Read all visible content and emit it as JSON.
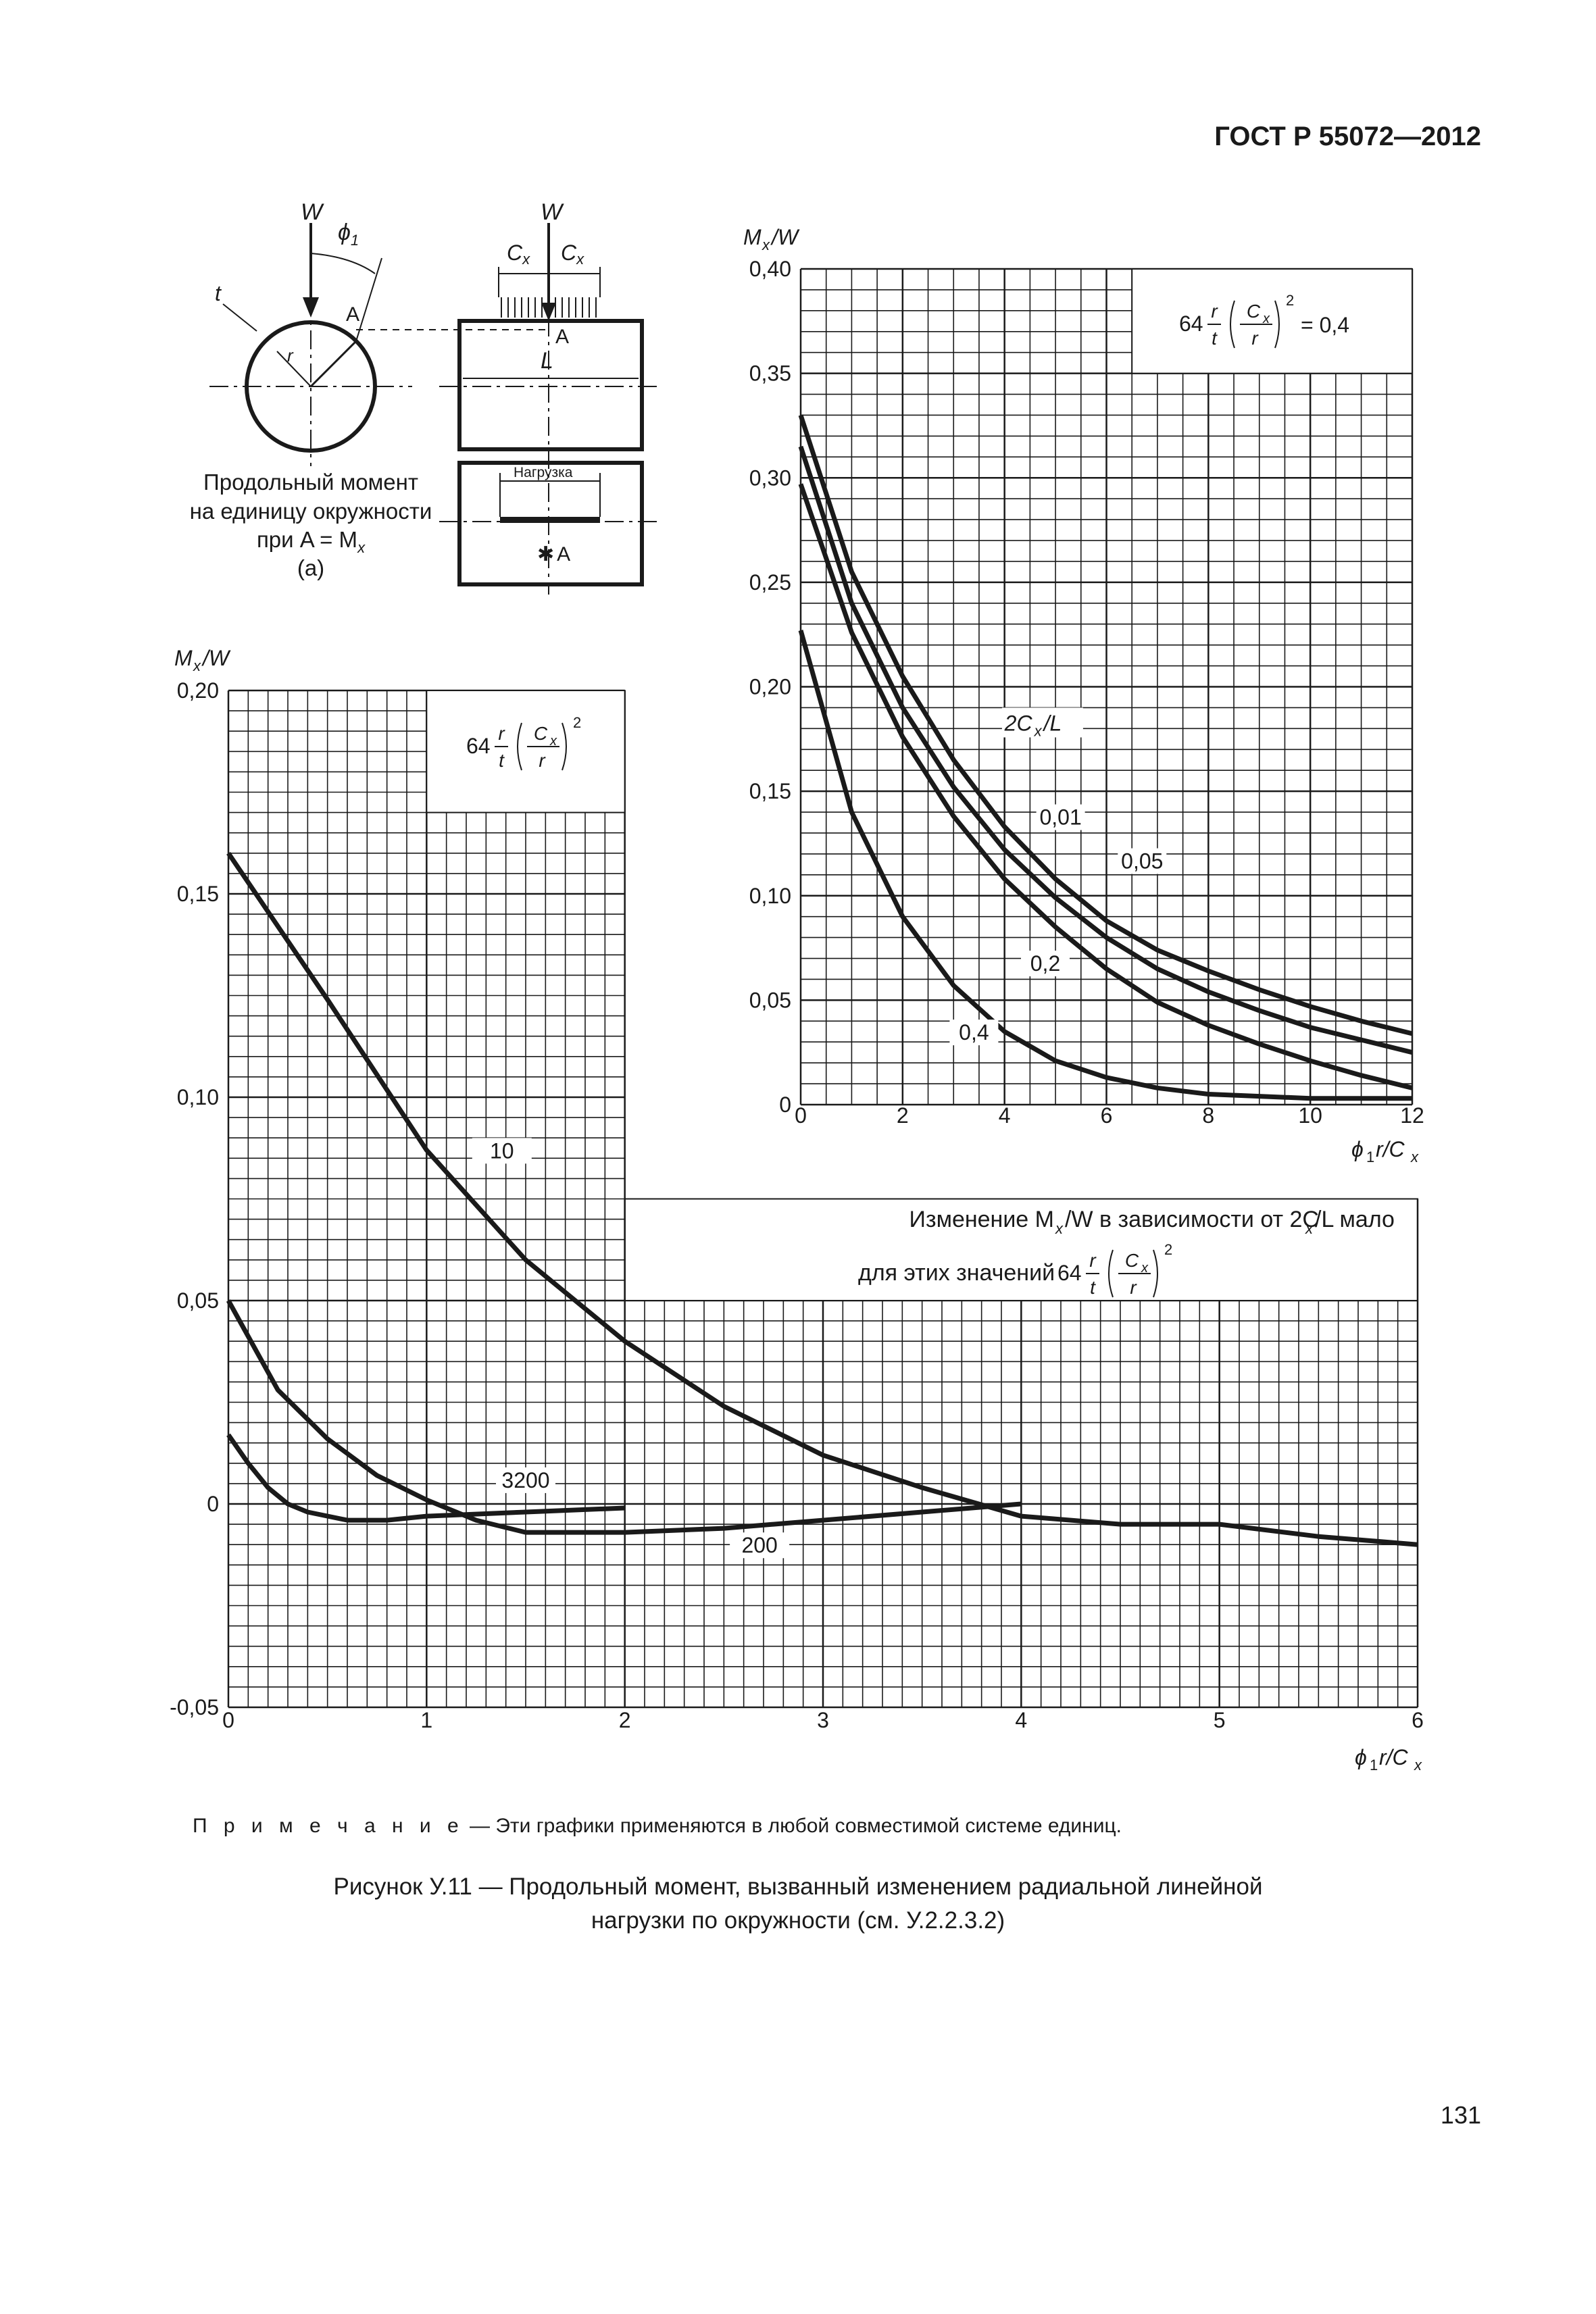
{
  "header": {
    "standard": "ГОСТ Р 55072—2012"
  },
  "page_number": "131",
  "note": {
    "prefix": "П р и м е ч а н и е",
    "text": " — Эти графики применяются в любой совместимой системе единиц."
  },
  "caption": {
    "line1": "Рисунок У.11 — Продольный момент, вызванный изменением радиальной линейной",
    "line2": "нагрузки по окружности (см. У.2.2.3.2)"
  },
  "schematic": {
    "w_left": "W",
    "w_right": "W",
    "phi": "ϕ",
    "phi_sub": "1",
    "t": "t",
    "r": "r",
    "A": "A",
    "cx": "C",
    "cx_sub": "x",
    "L": "L",
    "load_label": "Нагрузка",
    "star_A": "A",
    "desc_line1": "Продольный момент",
    "desc_line2": "на единицу окружности",
    "desc_line3": "при A = M",
    "desc_line3_sub": "x",
    "desc_line4": "(a)"
  },
  "chart_data": [
    {
      "type": "line",
      "ylabel": "Mx/W",
      "xlabel": "ϕ1r/Cx",
      "xlim": [
        0,
        12
      ],
      "ylim": [
        0,
        0.4
      ],
      "x_ticks": [
        "0",
        "2",
        "4",
        "6",
        "8",
        "10",
        "12"
      ],
      "y_ticks": [
        "0",
        "0,05",
        "0,10",
        "0,15",
        "0,20",
        "0,25",
        "0,30",
        "0,35",
        "0,40"
      ],
      "grid": true,
      "legend_box": "64 r/t (Cx/r)² = 0,4",
      "series_title": "2Cx/L",
      "series": [
        {
          "name": "0,01",
          "x": [
            0,
            1,
            2,
            3,
            4,
            5,
            6,
            7,
            8,
            9,
            10,
            11,
            12
          ],
          "y": [
            0.33,
            0.255,
            0.205,
            0.165,
            0.133,
            0.108,
            0.088,
            0.074,
            0.064,
            0.055,
            0.047,
            0.04,
            0.034
          ]
        },
        {
          "name": "0,05",
          "x": [
            0,
            1,
            2,
            3,
            4,
            5,
            6,
            7,
            8,
            9,
            10,
            11,
            12
          ],
          "y": [
            0.315,
            0.24,
            0.19,
            0.152,
            0.122,
            0.099,
            0.08,
            0.065,
            0.054,
            0.045,
            0.037,
            0.031,
            0.025
          ]
        },
        {
          "name": "0,2",
          "x": [
            0,
            1,
            2,
            3,
            4,
            5,
            6,
            7,
            8,
            9,
            10,
            11,
            12
          ],
          "y": [
            0.297,
            0.226,
            0.176,
            0.138,
            0.108,
            0.085,
            0.065,
            0.049,
            0.038,
            0.029,
            0.021,
            0.014,
            0.008
          ]
        },
        {
          "name": "0,4",
          "x": [
            0,
            1,
            2,
            3,
            4,
            5,
            6,
            7,
            8,
            9,
            10,
            11,
            12
          ],
          "y": [
            0.227,
            0.14,
            0.09,
            0.057,
            0.035,
            0.021,
            0.013,
            0.008,
            0.005,
            0.004,
            0.003,
            0.003,
            0.003
          ]
        }
      ]
    },
    {
      "type": "line",
      "ylabel": "Mx/W",
      "xlabel": "ϕ1r/Cx",
      "xlim": [
        0,
        6
      ],
      "ylim": [
        -0.05,
        0.2
      ],
      "x_ticks": [
        "0",
        "1",
        "2",
        "3",
        "4",
        "5",
        "6"
      ],
      "y_ticks": [
        "-0,05",
        "0",
        "0,05",
        "0,10",
        "0,15",
        "0,20"
      ],
      "grid": true,
      "legend_box": "64 r/t (Cx/r)²",
      "annotation": "Изменение Mx/W в зависимости от 2Cx/L мало для этих значений 64 r/t (Cx/r)²",
      "series": [
        {
          "name": "10",
          "x": [
            0,
            0.5,
            1,
            1.5,
            2,
            2.5,
            3,
            3.5,
            4,
            4.5,
            5,
            5.5,
            6
          ],
          "y": [
            0.16,
            0.124,
            0.087,
            0.06,
            0.04,
            0.024,
            0.012,
            0.004,
            -0.003,
            -0.005,
            -0.005,
            -0.008,
            -0.01
          ]
        },
        {
          "name": "200",
          "x": [
            0,
            0.25,
            0.5,
            0.75,
            1,
            1.25,
            1.5,
            2,
            2.5,
            3,
            3.5,
            4
          ],
          "y": [
            0.05,
            0.028,
            0.016,
            0.007,
            0.001,
            -0.004,
            -0.007,
            -0.007,
            -0.006,
            -0.004,
            -0.002,
            0
          ]
        },
        {
          "name": "3200",
          "x": [
            0,
            0.1,
            0.2,
            0.3,
            0.4,
            0.6,
            0.8,
            1,
            1.5,
            2
          ],
          "y": [
            0.017,
            0.01,
            0.004,
            0.0,
            -0.002,
            -0.004,
            -0.004,
            -0.003,
            -0.002,
            -0.001
          ]
        }
      ]
    }
  ]
}
